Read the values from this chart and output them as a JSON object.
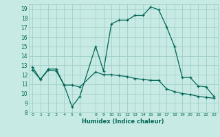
{
  "xlabel": "Humidex (Indice chaleur)",
  "bg_color": "#c8eae4",
  "grid_color": "#a0cfc8",
  "line_color": "#006655",
  "ylim": [
    8,
    19.5
  ],
  "yticks": [
    8,
    9,
    10,
    11,
    12,
    13,
    14,
    15,
    16,
    17,
    18,
    19
  ],
  "xlim": [
    -0.5,
    23.5
  ],
  "x_ticks": [
    0,
    1,
    2,
    3,
    4,
    5,
    6,
    8,
    9,
    10,
    11,
    12,
    13,
    14,
    15,
    16,
    17,
    18,
    19,
    20,
    21,
    22,
    23
  ],
  "x_labels": [
    "0",
    "1",
    "2",
    "3",
    "4",
    "5",
    "6",
    "8",
    "9",
    "10",
    "11",
    "12",
    "13",
    "14",
    "15",
    "16",
    "17",
    "18",
    "19",
    "20",
    "21",
    "22",
    "23"
  ],
  "series1_x": [
    0,
    1,
    2,
    3,
    4,
    5,
    6,
    8,
    9,
    10,
    11,
    12,
    13,
    14,
    15,
    16,
    17,
    18,
    19,
    20,
    21,
    22,
    23
  ],
  "series1_y": [
    12.8,
    11.5,
    12.6,
    12.6,
    10.9,
    8.6,
    9.7,
    15.0,
    12.4,
    17.4,
    17.8,
    17.8,
    18.3,
    18.3,
    19.2,
    18.9,
    17.1,
    15.0,
    11.7,
    11.7,
    10.8,
    10.7,
    9.7
  ],
  "series2_x": [
    0,
    1,
    2,
    3,
    4,
    5,
    6,
    8,
    9,
    10,
    11,
    12,
    13,
    14,
    15,
    16,
    17,
    18,
    19,
    20,
    21,
    22,
    23
  ],
  "series2_y": [
    12.5,
    11.5,
    12.5,
    12.4,
    10.9,
    10.9,
    10.7,
    12.3,
    12.0,
    12.0,
    11.9,
    11.8,
    11.6,
    11.5,
    11.4,
    11.4,
    10.5,
    10.2,
    10.0,
    9.9,
    9.7,
    9.6,
    9.5
  ]
}
